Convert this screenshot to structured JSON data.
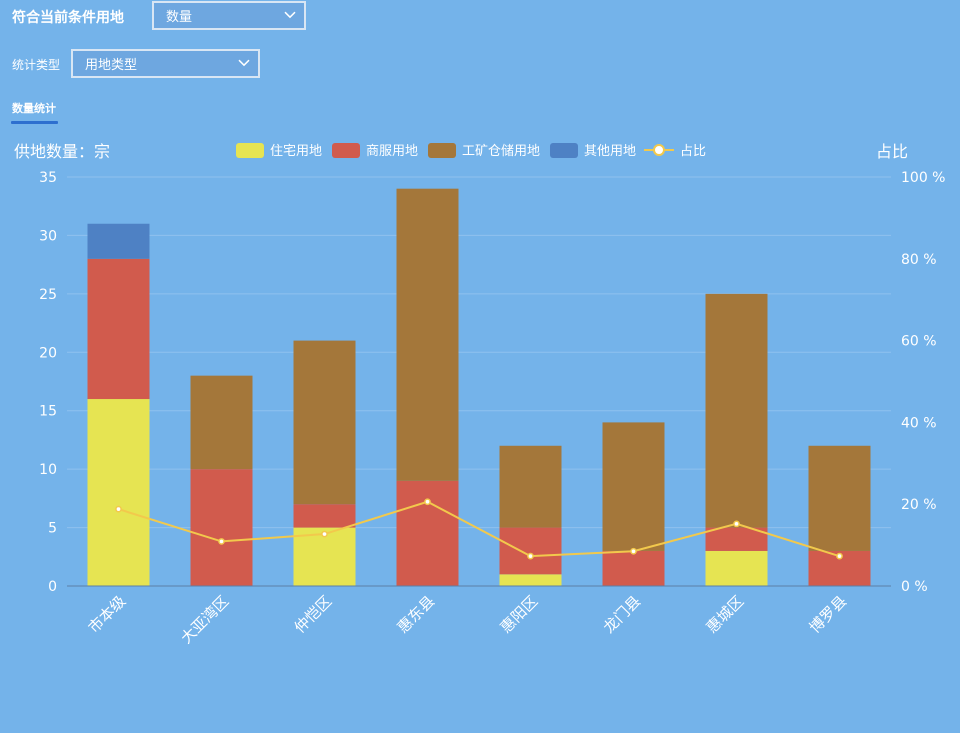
{
  "filters": {
    "label1": "符合当前条件用地",
    "select1": "数量",
    "label2": "统计类型",
    "select2": "用地类型"
  },
  "tabs": [
    {
      "label": "数量统计",
      "active": true
    }
  ],
  "chart_data": {
    "type": "bar",
    "stacked": true,
    "ylabel_left": "供地数量：宗",
    "ylabel_right": "占比",
    "ylim_left": [
      0,
      35
    ],
    "ylim_right": [
      0,
      100
    ],
    "y_ticks_left": [
      0,
      5,
      10,
      15,
      20,
      25,
      30,
      35
    ],
    "y_ticks_right": [
      "0 %",
      "20 %",
      "40 %",
      "60 %",
      "80 %",
      "100 %"
    ],
    "categories": [
      "市本级",
      "大亚湾区",
      "仲恺区",
      "惠东县",
      "惠阳区",
      "龙门县",
      "惠城区",
      "博罗县"
    ],
    "series": [
      {
        "name": "住宅用地",
        "color": "#e6e452",
        "values": [
          16,
          0,
          5,
          0,
          1,
          0,
          3,
          0
        ]
      },
      {
        "name": "商服用地",
        "color": "#d15b4d",
        "values": [
          12,
          10,
          2,
          9,
          4,
          3,
          2,
          3
        ]
      },
      {
        "name": "工矿仓储用地",
        "color": "#a4773a",
        "values": [
          0,
          8,
          14,
          25,
          7,
          11,
          20,
          9
        ]
      },
      {
        "name": "其他用地",
        "color": "#4e81c4",
        "values": [
          3,
          0,
          0,
          0,
          0,
          0,
          0,
          0
        ]
      }
    ],
    "line": {
      "name": "占比",
      "color": "#f2c94c",
      "axis": "right",
      "values": [
        18.8,
        10.9,
        12.7,
        20.6,
        7.3,
        8.5,
        15.2,
        7.3
      ]
    },
    "legend_position": "top-center",
    "grid": true
  }
}
